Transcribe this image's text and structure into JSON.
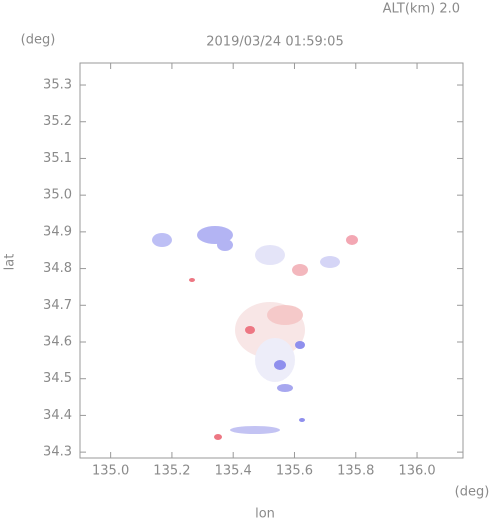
{
  "chart_data": {
    "type": "map",
    "title": "2019/03/24 01:59:05",
    "subtitle": "ALT(km) 2.0",
    "x_label": "lon",
    "y_label": "lat",
    "x_unit": "(deg)",
    "y_unit": "(deg)",
    "xlim": [
      134.9,
      136.15
    ],
    "ylim": [
      34.284,
      35.36
    ],
    "xticks": [
      {
        "value": 135,
        "label": "135.0"
      },
      135.2,
      135.4,
      135.6,
      135.8,
      {
        "value": 136,
        "label": "136.0"
      }
    ],
    "yticks": [
      34.3,
      34.4,
      34.5,
      34.6,
      34.7,
      34.8,
      34.9,
      {
        "value": 35,
        "label": "35.0"
      },
      35.1,
      35.2,
      35.3
    ],
    "grid": false
  }
}
